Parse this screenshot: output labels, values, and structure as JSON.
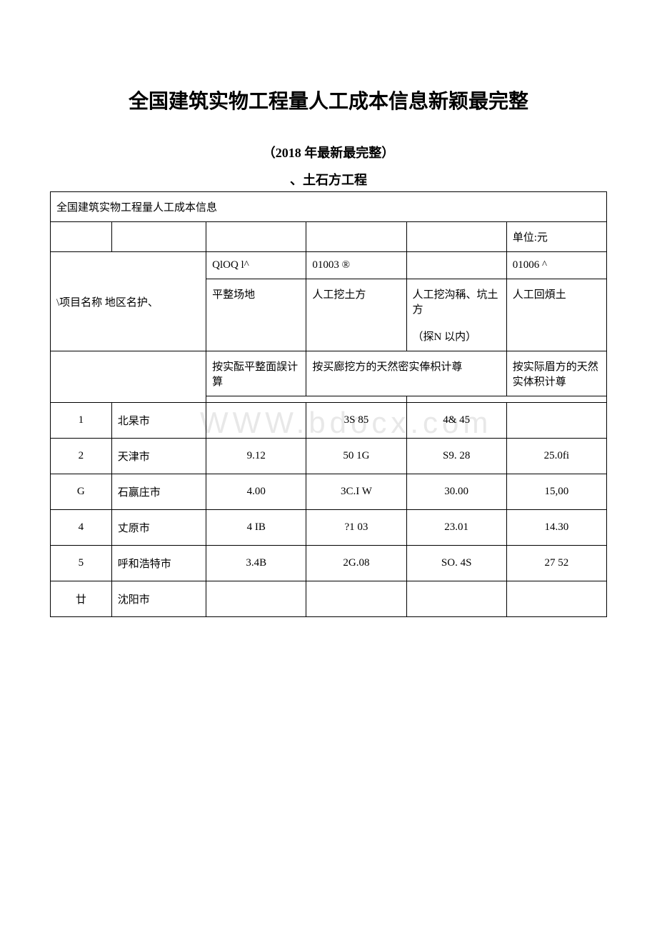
{
  "title": "全国建筑实物工程量人工成本信息新颖最完整",
  "subtitle": "（2018 年最新最完整）",
  "section": "、土石方工程",
  "watermark": "WWW.bdocx.com",
  "table": {
    "header_title": "全国建筑实物工程量人工成本信息",
    "unit_label": "单位:元",
    "row_label": "\\项目名称 地区名护、",
    "codes": [
      "QlOQ l^",
      "01003 ®",
      "",
      "01006 ^"
    ],
    "col_headers": [
      "平整场地",
      "人工挖土方",
      "人工挖沟稱、坑土方",
      "（探N 以内）",
      "人工回煩土"
    ],
    "calc_methods": [
      "按实酝平整面誤计算",
      "按买廊挖方的天然密实俸枳计尊",
      "按实际眉方的天然实体积计尊"
    ],
    "columns_width": [
      "11%",
      "17%",
      "18%",
      "18%",
      "18%",
      "18%"
    ],
    "rows": [
      {
        "num": "1",
        "region": "北杲市",
        "values": [
          "",
          "3S 85",
          "4& 45",
          ""
        ]
      },
      {
        "num": "2",
        "region": "天津市",
        "values": [
          "9.12",
          "50 1G",
          "S9. 28",
          "25.0fi"
        ]
      },
      {
        "num": "G",
        "region": "石赢庄市",
        "values": [
          "4.00",
          "3C.I W",
          "30.00",
          "15,00"
        ]
      },
      {
        "num": "4",
        "region": "丈原市",
        "values": [
          "4 IB",
          "?1 03",
          "23.01",
          "14.30"
        ]
      },
      {
        "num": "5",
        "region": "呼和浩特市",
        "values": [
          "3.4B",
          "2G.08",
          "SO. 4S",
          "27 52"
        ]
      },
      {
        "num": "廿",
        "region": "沈阳市",
        "values": [
          "",
          "",
          "",
          ""
        ]
      }
    ]
  },
  "colors": {
    "text": "#000000",
    "background": "#ffffff",
    "border": "#000000",
    "watermark": "#e8e8e8"
  }
}
